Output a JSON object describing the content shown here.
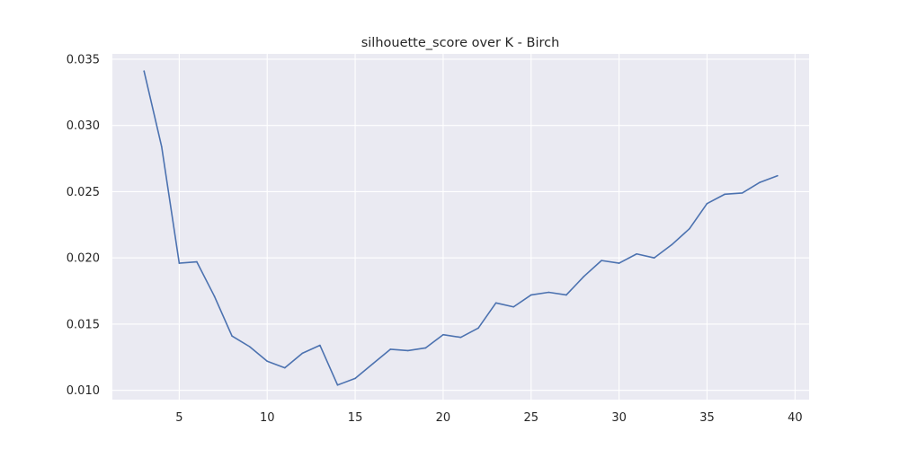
{
  "chart_data": {
    "type": "line",
    "title": "silhouette_score over K - Birch",
    "xlabel": "",
    "ylabel": "",
    "xlim": [
      1.2,
      40.8
    ],
    "ylim": [
      0.0093,
      0.0354
    ],
    "x_ticks": [
      5,
      10,
      15,
      20,
      25,
      30,
      35,
      40
    ],
    "y_ticks": [
      0.01,
      0.015,
      0.02,
      0.025,
      0.03,
      0.035
    ],
    "y_tick_labels": [
      "0.010",
      "0.015",
      "0.020",
      "0.025",
      "0.030",
      "0.035"
    ],
    "grid": true,
    "series": [
      {
        "color": "#4c72b0",
        "x": [
          3,
          4,
          5,
          6,
          7,
          8,
          9,
          10,
          11,
          12,
          13,
          14,
          15,
          16,
          17,
          18,
          19,
          20,
          21,
          22,
          23,
          24,
          25,
          26,
          27,
          28,
          29,
          30,
          31,
          32,
          33,
          34,
          35,
          36,
          37,
          38,
          39
        ],
        "values": [
          0.0341,
          0.0284,
          0.0196,
          0.0197,
          0.0171,
          0.0141,
          0.0133,
          0.0122,
          0.0117,
          0.0128,
          0.0134,
          0.0104,
          0.0109,
          0.012,
          0.0131,
          0.013,
          0.0132,
          0.0142,
          0.014,
          0.0147,
          0.0166,
          0.0163,
          0.0172,
          0.0174,
          0.0172,
          0.0186,
          0.0198,
          0.0196,
          0.0203,
          0.02,
          0.021,
          0.0222,
          0.0241,
          0.0248,
          0.0249,
          0.0257,
          0.0262
        ]
      }
    ]
  }
}
